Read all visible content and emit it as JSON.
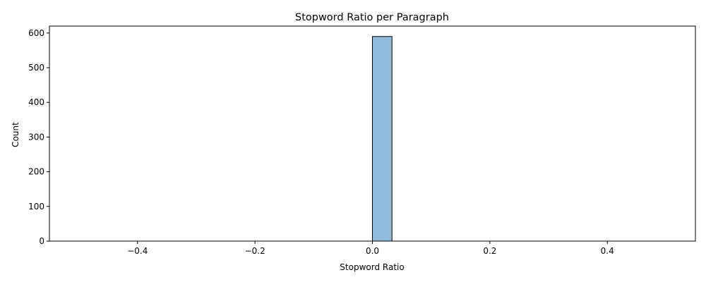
{
  "chart_data": {
    "type": "bar",
    "title": "Stopword Ratio per Paragraph",
    "xlabel": "Stopword Ratio",
    "ylabel": "Count",
    "xlim": [
      -0.55,
      0.55
    ],
    "ylim": [
      0,
      620
    ],
    "x_ticks": [
      -0.4,
      -0.2,
      0.0,
      0.2,
      0.4
    ],
    "x_tick_labels": [
      "−0.4",
      "−0.2",
      "0.0",
      "0.2",
      "0.4"
    ],
    "y_ticks": [
      0,
      100,
      200,
      300,
      400,
      500,
      600
    ],
    "y_tick_labels": [
      "0",
      "100",
      "200",
      "300",
      "400",
      "500",
      "600"
    ],
    "bins": {
      "start": -0.5,
      "end": 0.5,
      "count": 30
    },
    "series": [
      {
        "values": [
          0,
          0,
          0,
          0,
          0,
          0,
          0,
          0,
          0,
          0,
          0,
          0,
          0,
          0,
          0,
          590,
          0,
          0,
          0,
          0,
          0,
          0,
          0,
          0,
          0,
          0,
          0,
          0,
          0,
          0
        ]
      }
    ],
    "grid": false,
    "colors": {
      "bar_fill": "#8ebbdb",
      "bar_edge": "#000000",
      "axis": "#000000"
    }
  }
}
